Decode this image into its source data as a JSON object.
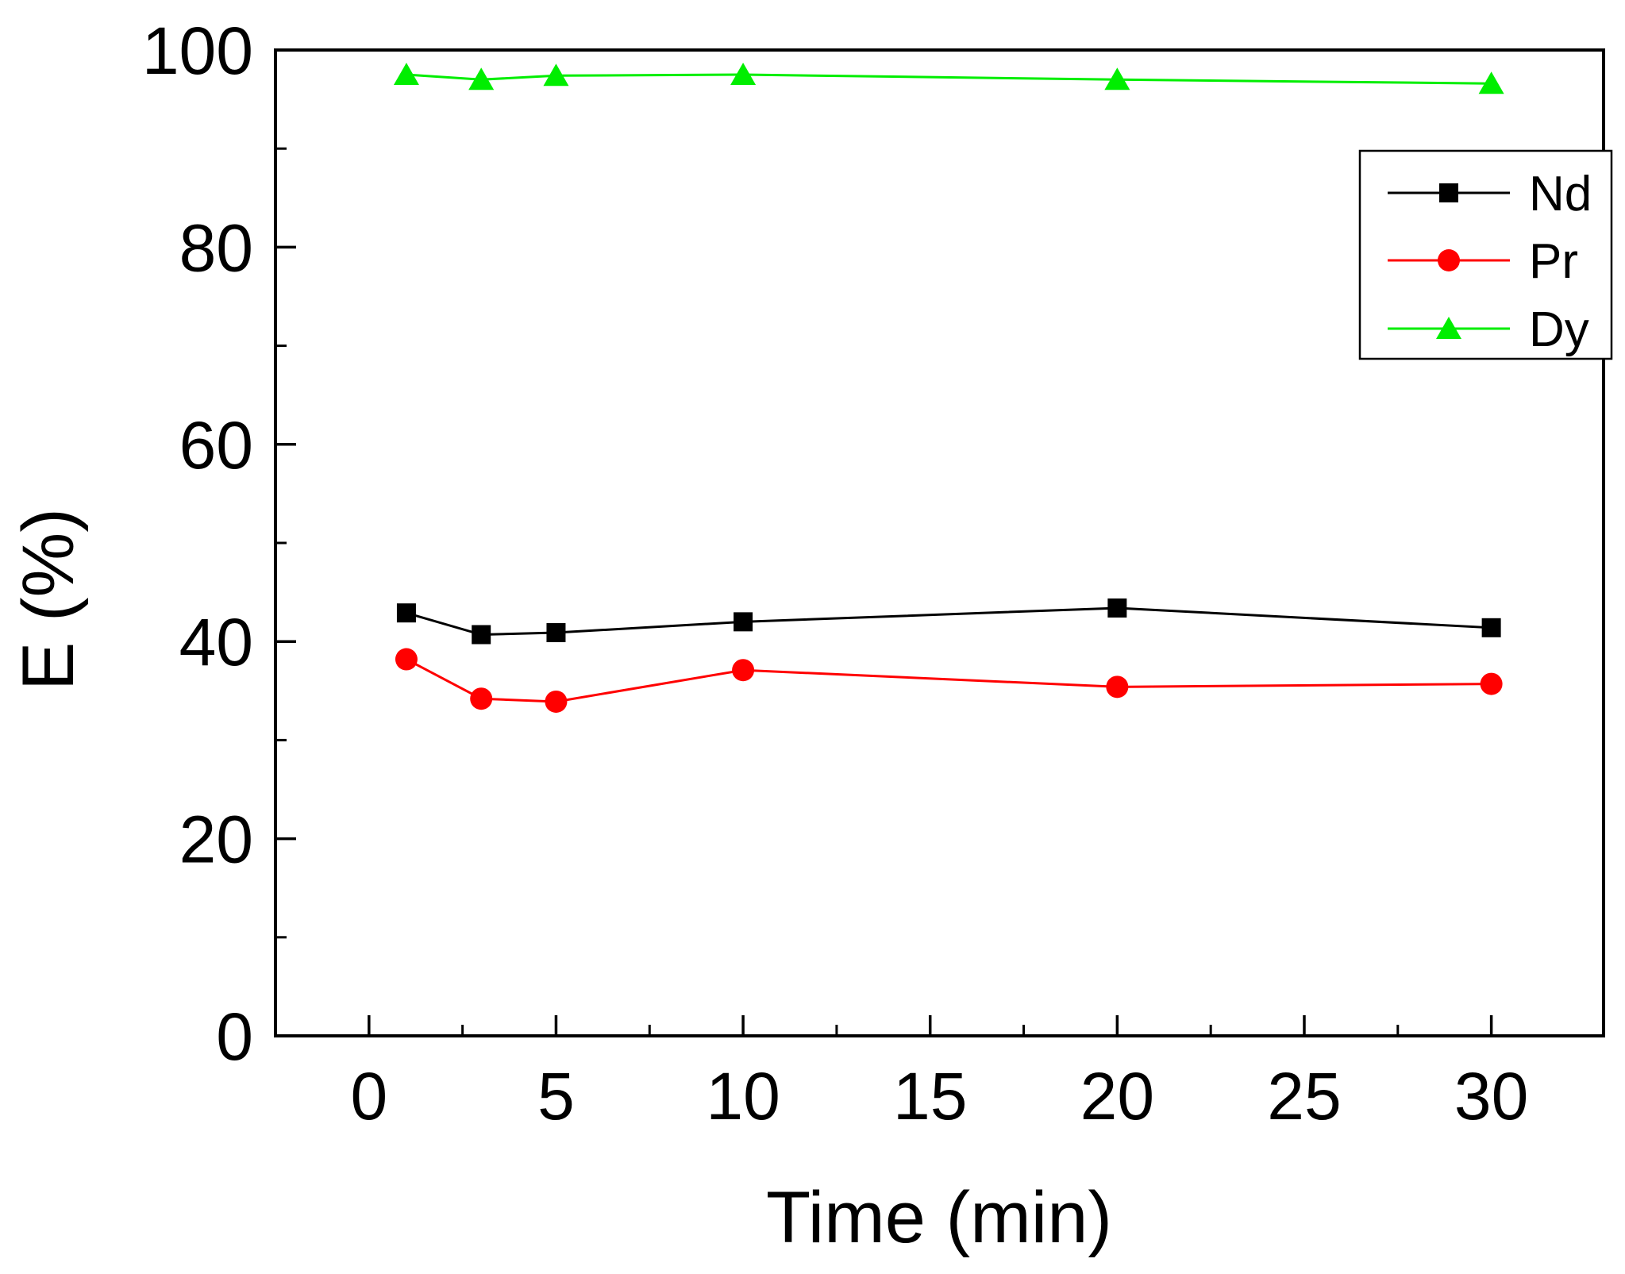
{
  "chart_data": {
    "type": "line",
    "title": "",
    "xlabel": "Time (min)",
    "ylabel": "E (%)",
    "xlim": [
      -2.5,
      33
    ],
    "ylim": [
      0,
      100
    ],
    "x_ticks": [
      0,
      5,
      10,
      15,
      20,
      25,
      30
    ],
    "x_minor_ticks": [
      2.5,
      7.5,
      12.5,
      17.5,
      22.5,
      27.5
    ],
    "y_ticks": [
      0,
      20,
      40,
      60,
      80,
      100
    ],
    "y_minor_ticks": [
      10,
      30,
      50,
      70,
      90
    ],
    "x_tick_labels": [
      "0",
      "5",
      "10",
      "15",
      "20",
      "25",
      "30"
    ],
    "y_tick_labels": [
      "0",
      "20",
      "40",
      "60",
      "80",
      "100"
    ],
    "x": [
      1,
      3,
      5,
      10,
      20,
      30
    ],
    "series": [
      {
        "name": "Nd",
        "values": [
          42.9,
          40.7,
          40.9,
          42.0,
          43.4,
          41.4
        ],
        "color": "#000000",
        "marker": "square"
      },
      {
        "name": "Pr",
        "values": [
          38.2,
          34.2,
          33.9,
          37.1,
          35.4,
          35.7
        ],
        "color": "#ff0000",
        "marker": "circle"
      },
      {
        "name": "Dy",
        "values": [
          97.5,
          97.0,
          97.4,
          97.5,
          97.0,
          96.6
        ],
        "color": "#00ee00",
        "marker": "triangle"
      }
    ],
    "legend": {
      "position": "top-right",
      "entries": [
        "Nd",
        "Pr",
        "Dy"
      ]
    },
    "grid": false
  }
}
